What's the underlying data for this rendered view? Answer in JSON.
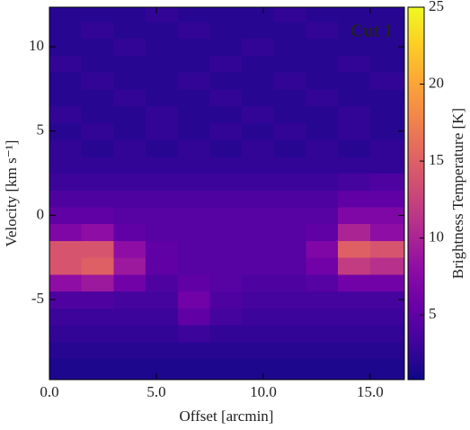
{
  "chart_data": {
    "type": "heatmap",
    "annotation": "Cut 1",
    "annotation_color": "#3a9e80",
    "xlabel": "Offset [arcmin]",
    "ylabel": "Velocity [km s⁻¹]",
    "colorbar_label": "Brightness Temperature [K]",
    "colormap": "plasma",
    "x_bins": [
      0,
      1.5,
      3,
      4.5,
      6,
      7.5,
      9,
      10.5,
      12,
      13.5,
      15,
      16.6
    ],
    "y_bins": [
      -9.75,
      -8.5,
      -7.5,
      -6.5,
      -5.5,
      -4.5,
      -3.5,
      -2.5,
      -1.5,
      -0.5,
      0.5,
      1.5,
      2.5,
      3.5,
      4.5,
      5.5,
      6.5,
      7.5,
      8.5,
      9.5,
      10.5,
      11.5,
      12.35
    ],
    "z": [
      [
        1.5,
        1.5,
        1.5,
        1.5,
        1.5,
        1.5,
        1.5,
        1.5,
        1.5,
        1.5,
        1.5
      ],
      [
        2,
        2,
        2,
        2,
        2,
        2,
        2,
        2,
        2,
        2,
        2
      ],
      [
        2.5,
        2.5,
        2.5,
        2.5,
        3,
        2.5,
        2.5,
        2.5,
        2.5,
        2.5,
        2.5
      ],
      [
        3,
        3,
        3,
        3,
        5,
        3.5,
        3,
        3,
        3,
        3,
        3
      ],
      [
        4,
        4,
        3.5,
        3.5,
        6,
        4,
        3.5,
        3.5,
        3.5,
        3.5,
        3.5
      ],
      [
        8,
        9,
        6,
        4,
        5,
        4.5,
        4,
        4,
        4.5,
        6,
        6
      ],
      [
        14,
        15,
        9,
        5,
        4.5,
        4.5,
        4.5,
        4.5,
        6,
        12,
        11
      ],
      [
        14,
        14,
        8,
        5,
        4.5,
        4.5,
        4.5,
        4.5,
        7,
        15,
        14
      ],
      [
        7,
        8,
        5,
        4.5,
        4.5,
        4.5,
        4.5,
        4.5,
        5,
        10,
        8
      ],
      [
        5,
        5,
        4.5,
        4.5,
        4.5,
        4.5,
        4.5,
        4.5,
        4.5,
        7,
        7
      ],
      [
        4,
        4,
        4,
        4,
        4,
        4,
        4,
        4,
        4,
        5,
        5
      ],
      [
        3,
        3,
        3,
        3,
        3,
        3,
        3,
        3,
        3,
        3.5,
        4
      ],
      [
        2.5,
        2.5,
        2.5,
        2.5,
        2.5,
        2.5,
        2.5,
        2.5,
        2.5,
        2.5,
        2.5
      ],
      [
        2.5,
        2,
        2.5,
        2,
        2.5,
        2,
        2.5,
        2,
        2.5,
        2,
        2.5
      ],
      [
        2,
        2.5,
        2,
        2.5,
        2,
        2.5,
        2,
        2.5,
        2,
        2.5,
        2
      ],
      [
        2.5,
        2,
        2,
        2.5,
        2,
        2,
        2.5,
        2,
        2,
        2.5,
        2
      ],
      [
        2,
        2,
        2.5,
        2,
        2,
        2.5,
        2,
        2,
        2.5,
        2,
        2
      ],
      [
        2,
        2.5,
        2,
        2,
        2.5,
        2,
        2,
        2.5,
        2,
        2,
        2.5
      ],
      [
        2.5,
        2,
        2,
        2,
        2,
        2.5,
        2,
        2,
        2,
        2.5,
        2
      ],
      [
        2,
        2,
        2.5,
        2,
        2,
        2,
        2.5,
        2,
        2,
        2,
        2
      ],
      [
        2,
        2.5,
        2,
        2,
        2.5,
        2,
        2,
        2,
        2.5,
        2,
        2
      ],
      [
        2,
        2,
        2,
        2.5,
        2,
        2,
        2,
        2.5,
        2,
        2,
        2
      ]
    ],
    "xlim": [
      0,
      16.6
    ],
    "ylim": [
      -9.75,
      12.35
    ],
    "xticks": [
      {
        "value": 0,
        "label": "0.0"
      },
      {
        "value": 5,
        "label": "5.0"
      },
      {
        "value": 10,
        "label": "10.0"
      },
      {
        "value": 15,
        "label": "15.0"
      }
    ],
    "yticks": [
      -5,
      0,
      5,
      10
    ],
    "zlim": [
      0.8,
      25
    ],
    "zticks": [
      5,
      10,
      15,
      20,
      25
    ]
  }
}
